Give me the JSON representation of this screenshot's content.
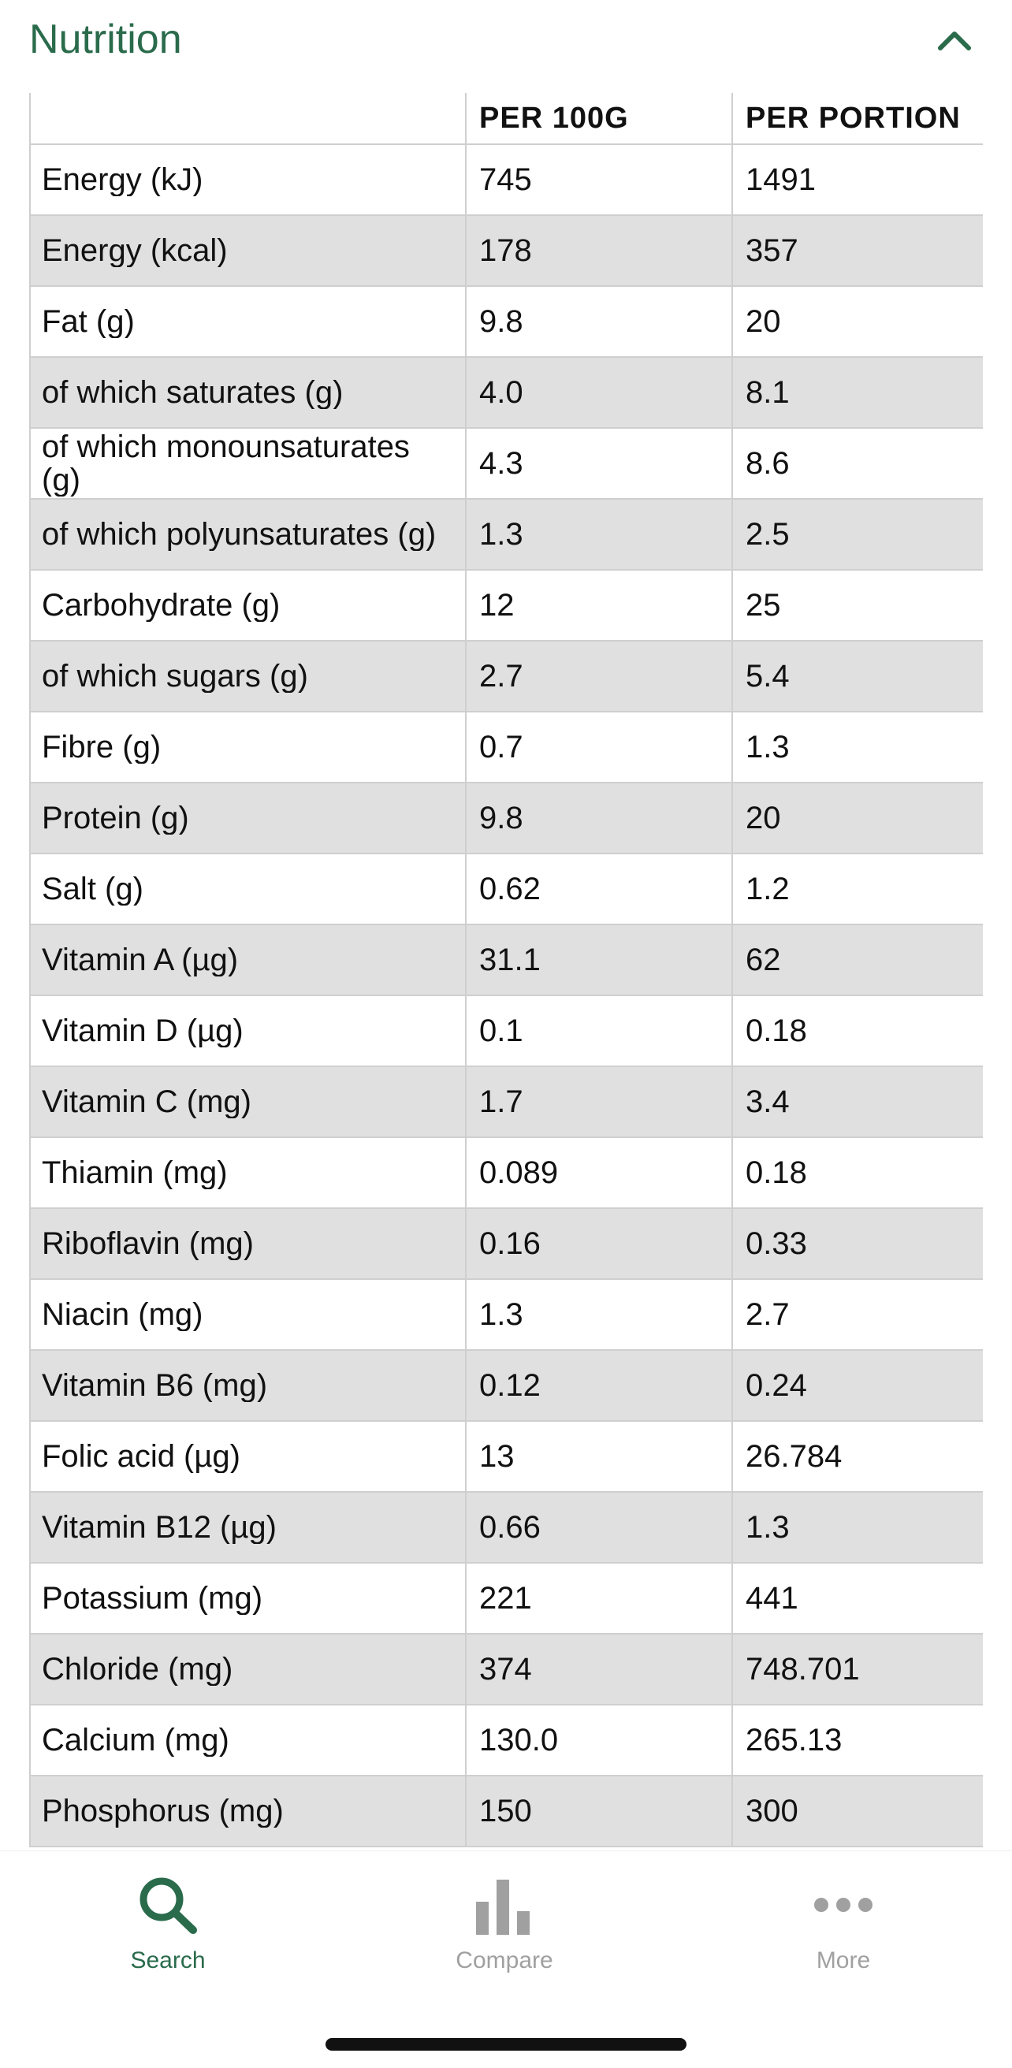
{
  "section": {
    "title": "Nutrition",
    "collapse_icon": "chevron-up-icon"
  },
  "table": {
    "headers": [
      "",
      "PER 100G",
      "PER PORTION"
    ],
    "rows": [
      {
        "name": "Energy (kJ)",
        "per100": "745",
        "portion": "1491"
      },
      {
        "name": "Energy (kcal)",
        "per100": "178",
        "portion": "357"
      },
      {
        "name": "Fat (g)",
        "per100": "9.8",
        "portion": "20"
      },
      {
        "name": "of which saturates (g)",
        "per100": "4.0",
        "portion": "8.1"
      },
      {
        "name": "of which monounsaturates (g)",
        "per100": "4.3",
        "portion": "8.6"
      },
      {
        "name": "of which polyunsaturates (g)",
        "per100": "1.3",
        "portion": "2.5"
      },
      {
        "name": "Carbohydrate (g)",
        "per100": "12",
        "portion": "25"
      },
      {
        "name": "of which sugars (g)",
        "per100": "2.7",
        "portion": "5.4"
      },
      {
        "name": "Fibre (g)",
        "per100": "0.7",
        "portion": "1.3"
      },
      {
        "name": "Protein (g)",
        "per100": "9.8",
        "portion": "20"
      },
      {
        "name": "Salt (g)",
        "per100": "0.62",
        "portion": "1.2"
      },
      {
        "name": "Vitamin A (µg)",
        "per100": "31.1",
        "portion": "62"
      },
      {
        "name": "Vitamin D (µg)",
        "per100": "0.1",
        "portion": "0.18"
      },
      {
        "name": "Vitamin C (mg)",
        "per100": "1.7",
        "portion": "3.4"
      },
      {
        "name": "Thiamin (mg)",
        "per100": "0.089",
        "portion": "0.18"
      },
      {
        "name": "Riboflavin (mg)",
        "per100": "0.16",
        "portion": "0.33"
      },
      {
        "name": "Niacin (mg)",
        "per100": "1.3",
        "portion": "2.7"
      },
      {
        "name": "Vitamin B6 (mg)",
        "per100": "0.12",
        "portion": "0.24"
      },
      {
        "name": "Folic acid (µg)",
        "per100": "13",
        "portion": "26.784"
      },
      {
        "name": "Vitamin B12 (µg)",
        "per100": "0.66",
        "portion": "1.3"
      },
      {
        "name": "Potassium (mg)",
        "per100": "221",
        "portion": "441"
      },
      {
        "name": "Chloride (mg)",
        "per100": "374",
        "portion": "748.701"
      },
      {
        "name": "Calcium (mg)",
        "per100": "130.0",
        "portion": "265.13"
      },
      {
        "name": "Phosphorus (mg)",
        "per100": "150",
        "portion": "300"
      }
    ]
  },
  "tab_bar": {
    "tabs": [
      {
        "label": "Search",
        "icon": "search-icon",
        "active": true
      },
      {
        "label": "Compare",
        "icon": "bar-chart-icon",
        "active": false
      },
      {
        "label": "More",
        "icon": "more-dots-icon",
        "active": false
      }
    ]
  },
  "colors": {
    "accent": "#2a6b4c",
    "inactive": "#a0a0a0",
    "row_alt": "#e0e0e0",
    "border": "#cfcfcf"
  }
}
